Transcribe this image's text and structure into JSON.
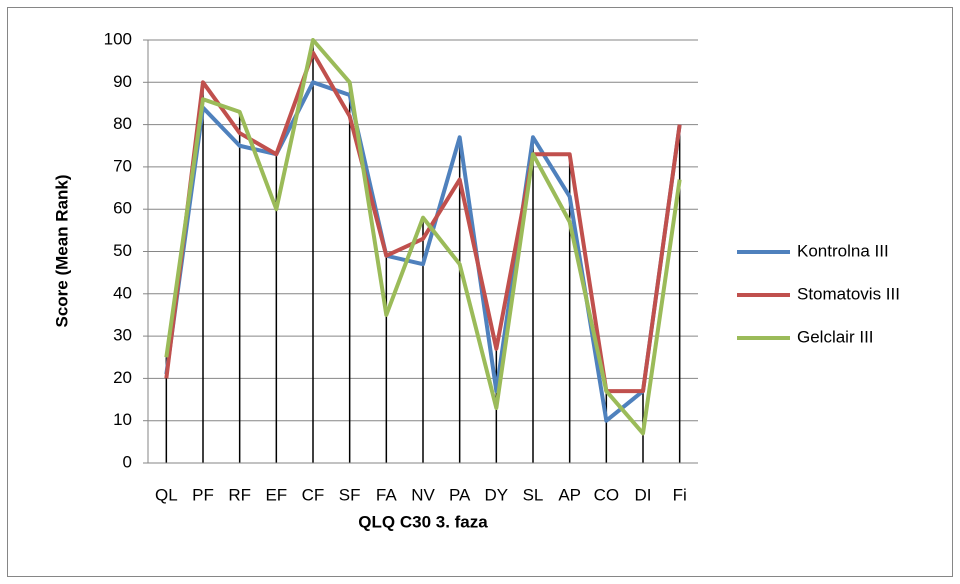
{
  "chart_data": {
    "type": "line",
    "x_label": "QLQ C30 3. faza",
    "y_label": "Score (Mean Rank)",
    "categories": [
      "QL",
      "PF",
      "RF",
      "EF",
      "CF",
      "SF",
      "FA",
      "NV",
      "PA",
      "DY",
      "SL",
      "AP",
      "CO",
      "DI",
      "Fi"
    ],
    "series": [
      {
        "name": "Kontrolna III",
        "color": "#4f81bd",
        "values": [
          21,
          84,
          75,
          73,
          90,
          87,
          49,
          47,
          77,
          17,
          77,
          63,
          10,
          17,
          80
        ]
      },
      {
        "name": "Stomatovis III",
        "color": "#c0504d",
        "values": [
          20,
          90,
          78,
          73,
          97,
          82,
          49,
          53,
          67,
          27,
          73,
          73,
          17,
          17,
          80
        ]
      },
      {
        "name": "Gelclair III",
        "color": "#9bbb59",
        "values": [
          25,
          86,
          83,
          60,
          100,
          90,
          35,
          58,
          47,
          13,
          73,
          57,
          17,
          7,
          67
        ]
      }
    ],
    "ylim": [
      0,
      100
    ],
    "yticks": [
      0,
      10,
      20,
      30,
      40,
      50,
      60,
      70,
      80,
      90,
      100
    ],
    "grid": true,
    "drop_lines": true,
    "legend": "right"
  }
}
